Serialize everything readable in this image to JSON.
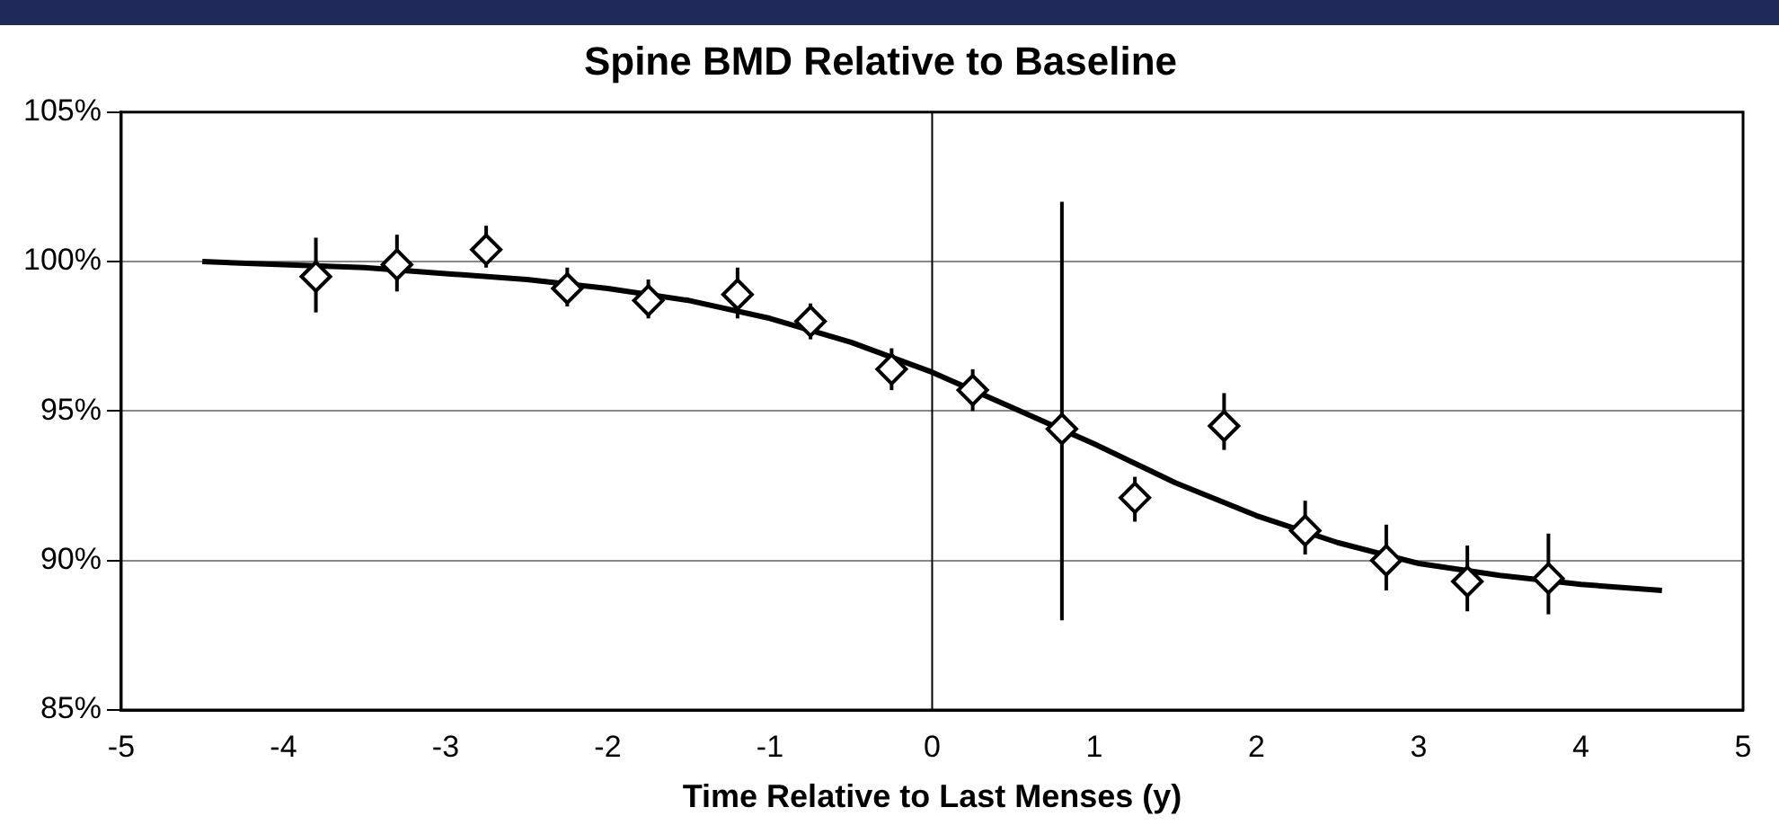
{
  "chart_data": {
    "type": "scatter",
    "title": "Spine BMD Relative to Baseline",
    "xlabel": "Time Relative to Last Menses (y)",
    "xlim": [
      -5,
      5
    ],
    "xticks": [
      -5,
      -4,
      -3,
      -2,
      -1,
      0,
      1,
      2,
      3,
      4,
      5
    ],
    "ylim": [
      85,
      105
    ],
    "yticks": [
      {
        "value": 85,
        "label": "85%"
      },
      {
        "value": 90,
        "label": "90%"
      },
      {
        "value": 95,
        "label": "95%"
      },
      {
        "value": 100,
        "label": "100%"
      },
      {
        "value": 105,
        "label": "105%"
      }
    ],
    "grid": "y",
    "legend": false,
    "ref_lines": [
      {
        "axis": "x",
        "value": 0,
        "color": "#000000"
      }
    ],
    "series": [
      {
        "type": "scatter",
        "color": "#000000",
        "marker": "diamond",
        "x": [
          -3.8,
          -3.3,
          -2.75,
          -2.25,
          -1.75,
          -1.2,
          -0.75,
          -0.25,
          0.25,
          0.8,
          1.25,
          1.8,
          2.3,
          2.8,
          3.3,
          3.8
        ],
        "values": [
          99.5,
          99.9,
          100.4,
          99.1,
          98.7,
          98.9,
          98.0,
          96.4,
          95.7,
          94.4,
          92.1,
          94.5,
          91.0,
          90.0,
          89.3,
          89.4
        ],
        "errors": [
          [
            98.3,
            100.8
          ],
          [
            99.0,
            100.9
          ],
          [
            99.8,
            101.2
          ],
          [
            98.5,
            99.8
          ],
          [
            98.1,
            99.4
          ],
          [
            98.1,
            99.8
          ],
          [
            97.4,
            98.6
          ],
          [
            95.7,
            97.1
          ],
          [
            95.0,
            96.4
          ],
          [
            88.0,
            102.0
          ],
          [
            91.3,
            92.8
          ],
          [
            93.7,
            95.6
          ],
          [
            90.2,
            92.0
          ],
          [
            89.0,
            91.2
          ],
          [
            88.3,
            90.5
          ],
          [
            88.2,
            90.9
          ]
        ]
      },
      {
        "type": "line",
        "color": "#000000",
        "marker": "none",
        "line_style": "solid",
        "x": [
          -4.5,
          -4,
          -3.5,
          -3,
          -2.5,
          -2,
          -1.5,
          -1,
          -0.5,
          0,
          0.5,
          1,
          1.5,
          2,
          2.5,
          3,
          3.5,
          4,
          4.5
        ],
        "values": [
          100.0,
          99.9,
          99.8,
          99.6,
          99.4,
          99.1,
          98.7,
          98.1,
          97.3,
          96.3,
          95.1,
          93.9,
          92.6,
          91.5,
          90.6,
          89.9,
          89.5,
          89.2,
          89.0
        ]
      }
    ]
  }
}
